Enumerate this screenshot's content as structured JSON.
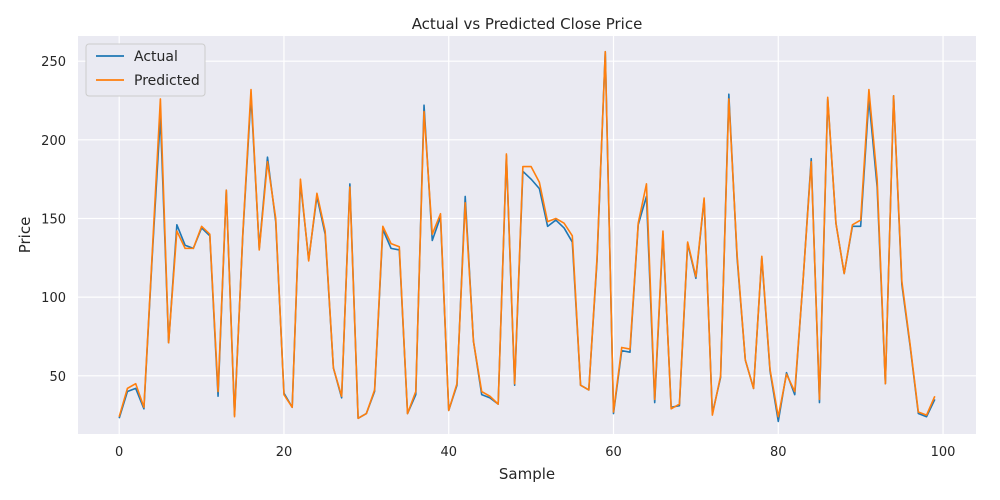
{
  "chart_data": {
    "type": "line",
    "title": "Actual vs Predicted Close Price",
    "xlabel": "Sample",
    "ylabel": "Price",
    "xlim": [
      -5,
      104
    ],
    "ylim": [
      13,
      266
    ],
    "xticks": [
      0,
      20,
      40,
      60,
      80,
      100
    ],
    "yticks": [
      50,
      100,
      150,
      200,
      250
    ],
    "grid": true,
    "legend_position": "top-left",
    "x": [
      0,
      1,
      2,
      3,
      4,
      5,
      6,
      7,
      8,
      9,
      10,
      11,
      12,
      13,
      14,
      15,
      16,
      17,
      18,
      19,
      20,
      21,
      22,
      23,
      24,
      25,
      26,
      27,
      28,
      29,
      30,
      31,
      32,
      33,
      34,
      35,
      36,
      37,
      38,
      39,
      40,
      41,
      42,
      43,
      44,
      45,
      46,
      47,
      48,
      49,
      50,
      51,
      52,
      53,
      54,
      55,
      56,
      57,
      58,
      59,
      60,
      61,
      62,
      63,
      64,
      65,
      66,
      67,
      68,
      69,
      70,
      71,
      72,
      73,
      74,
      75,
      76,
      77,
      78,
      79,
      80,
      81,
      82,
      83,
      84,
      85,
      86,
      87,
      88,
      89,
      90,
      91,
      92,
      93,
      94,
      95,
      96,
      97,
      98,
      99
    ],
    "series": [
      {
        "name": "Actual",
        "color": "#1f77b4",
        "values": [
          23,
          40,
          42,
          29,
          125,
          215,
          71,
          146,
          133,
          131,
          144,
          139,
          37,
          168,
          25,
          139,
          228,
          131,
          189,
          148,
          39,
          30,
          173,
          124,
          164,
          140,
          55,
          36,
          172,
          23,
          26,
          40,
          143,
          131,
          130,
          26,
          38,
          222,
          136,
          151,
          28,
          44,
          164,
          72,
          38,
          36,
          32,
          190,
          44,
          180,
          175,
          169,
          145,
          149,
          144,
          135,
          44,
          41,
          123,
          256,
          26,
          66,
          65,
          146,
          164,
          33,
          140,
          30,
          31,
          134,
          112,
          162,
          26,
          49,
          229,
          125,
          60,
          42,
          125,
          53,
          21,
          52,
          38,
          110,
          188,
          33,
          226,
          147,
          115,
          145,
          145,
          226,
          170,
          45,
          228,
          108,
          69,
          26,
          24,
          35
        ]
      },
      {
        "name": "Predicted",
        "color": "#ff7f0e",
        "values": [
          24,
          42,
          45,
          30,
          127,
          226,
          71,
          142,
          131,
          131,
          145,
          140,
          40,
          168,
          24,
          140,
          232,
          130,
          186,
          150,
          38,
          30,
          175,
          123,
          166,
          142,
          55,
          37,
          170,
          23,
          26,
          41,
          145,
          134,
          132,
          26,
          40,
          218,
          140,
          153,
          28,
          45,
          160,
          72,
          40,
          37,
          32,
          191,
          45,
          183,
          183,
          173,
          148,
          150,
          147,
          139,
          44,
          41,
          125,
          256,
          27,
          68,
          67,
          147,
          172,
          35,
          142,
          29,
          32,
          135,
          113,
          163,
          25,
          50,
          226,
          127,
          60,
          42,
          126,
          54,
          24,
          51,
          40,
          110,
          186,
          35,
          227,
          147,
          115,
          146,
          149,
          232,
          175,
          45,
          228,
          110,
          70,
          27,
          25,
          37
        ]
      }
    ]
  }
}
